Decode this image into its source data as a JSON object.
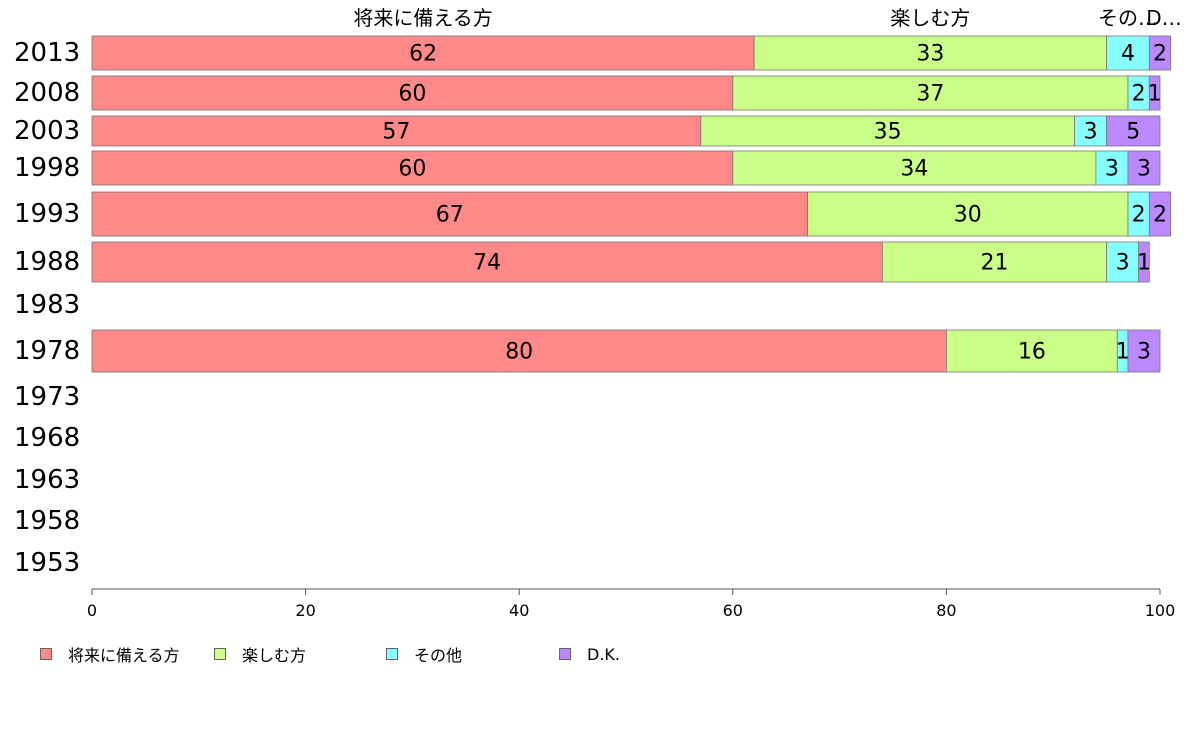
{
  "chart_data": {
    "type": "bar",
    "orientation": "horizontal",
    "stacked": true,
    "categories": [
      "2013",
      "2008",
      "2003",
      "1998",
      "1993",
      "1988",
      "1983",
      "1978",
      "1973",
      "1968",
      "1963",
      "1958",
      "1953"
    ],
    "series": [
      {
        "name": "将来に備える方",
        "color": "#ff8888",
        "values": [
          62,
          60,
          57,
          60,
          67,
          74,
          null,
          80,
          null,
          null,
          null,
          null,
          null
        ]
      },
      {
        "name": "楽しむ方",
        "color": "#ccff88",
        "values": [
          33,
          37,
          35,
          34,
          30,
          21,
          null,
          16,
          null,
          null,
          null,
          null,
          null
        ]
      },
      {
        "name": "その他",
        "color": "#88ffff",
        "values": [
          4,
          2,
          3,
          3,
          2,
          3,
          null,
          1,
          null,
          null,
          null,
          null,
          null
        ]
      },
      {
        "name": "D.K.",
        "color": "#bb88ff",
        "values": [
          2,
          1,
          5,
          3,
          2,
          1,
          null,
          3,
          null,
          null,
          null,
          null,
          null
        ]
      }
    ],
    "top_labels": [
      "将来に備える方",
      "楽しむ方",
      "その…"
    ],
    "top_labels_last": "D…",
    "xlim": [
      0,
      100
    ],
    "xticks": [
      "0",
      "20",
      "40",
      "60",
      "80",
      "100"
    ],
    "xlabel": "",
    "ylabel": "",
    "title": "",
    "grid": false,
    "legend_position": "bottom-left"
  }
}
